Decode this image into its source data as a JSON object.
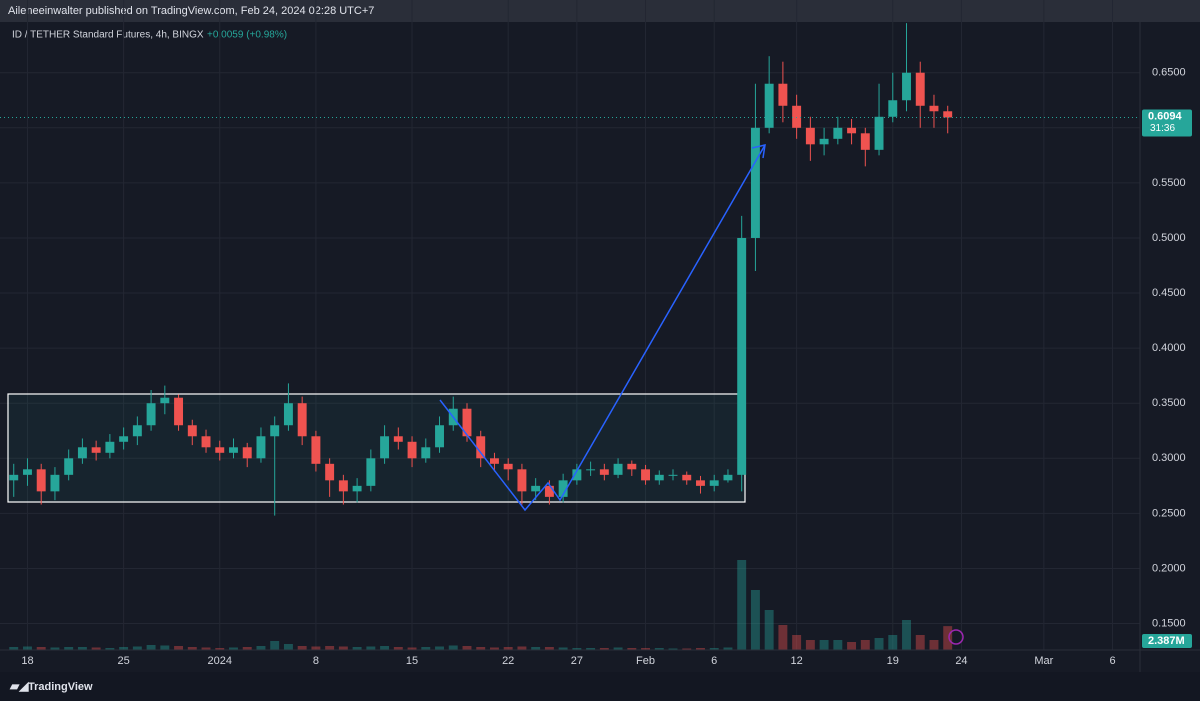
{
  "header": {
    "publisher": "Aileneeinwalter published on TradingView.com, Feb 24, 2024 02:28 UTC+7"
  },
  "footer": {
    "brand": "TradingView"
  },
  "chart_data": {
    "type": "candlestick",
    "title": "ID / TETHER Standard Futures, 4h, BINGX",
    "change": "+0.0059 (+0.98%)",
    "up_color": "#26a69a",
    "down_color": "#ef5350",
    "x": [
      "2023-12-17",
      "2023-12-18",
      "2023-12-19",
      "2023-12-20",
      "2023-12-21",
      "2023-12-22",
      "2023-12-23",
      "2023-12-24",
      "2023-12-25",
      "2023-12-26",
      "2023-12-27",
      "2023-12-28",
      "2023-12-29",
      "2023-12-30",
      "2023-12-31",
      "2024-01-01",
      "2024-01-02",
      "2024-01-03",
      "2024-01-04",
      "2024-01-05",
      "2024-01-06",
      "2024-01-07",
      "2024-01-08",
      "2024-01-09",
      "2024-01-10",
      "2024-01-11",
      "2024-01-12",
      "2024-01-13",
      "2024-01-14",
      "2024-01-15",
      "2024-01-16",
      "2024-01-17",
      "2024-01-18",
      "2024-01-19",
      "2024-01-20",
      "2024-01-21",
      "2024-01-22",
      "2024-01-23",
      "2024-01-24",
      "2024-01-25",
      "2024-01-26",
      "2024-01-27",
      "2024-01-28",
      "2024-01-29",
      "2024-01-30",
      "2024-01-31",
      "2024-02-01",
      "2024-02-02",
      "2024-02-03",
      "2024-02-04",
      "2024-02-05",
      "2024-02-06",
      "2024-02-07",
      "2024-02-08",
      "2024-02-09",
      "2024-02-10",
      "2024-02-11",
      "2024-02-12",
      "2024-02-13",
      "2024-02-14",
      "2024-02-15",
      "2024-02-16",
      "2024-02-17",
      "2024-02-18",
      "2024-02-19",
      "2024-02-20",
      "2024-02-21",
      "2024-02-22",
      "2024-02-23"
    ],
    "open": [
      0.28,
      0.285,
      0.29,
      0.27,
      0.285,
      0.3,
      0.31,
      0.305,
      0.315,
      0.32,
      0.33,
      0.35,
      0.355,
      0.33,
      0.32,
      0.31,
      0.305,
      0.31,
      0.3,
      0.32,
      0.33,
      0.35,
      0.32,
      0.295,
      0.28,
      0.27,
      0.275,
      0.3,
      0.32,
      0.315,
      0.3,
      0.31,
      0.33,
      0.345,
      0.32,
      0.3,
      0.295,
      0.29,
      0.27,
      0.275,
      0.265,
      0.28,
      0.29,
      0.29,
      0.285,
      0.295,
      0.29,
      0.28,
      0.285,
      0.285,
      0.28,
      0.275,
      0.28,
      0.285,
      0.5,
      0.6,
      0.64,
      0.62,
      0.6,
      0.585,
      0.59,
      0.6,
      0.595,
      0.58,
      0.61,
      0.625,
      0.65,
      0.62,
      0.615
    ],
    "high": [
      0.295,
      0.3,
      0.295,
      0.292,
      0.308,
      0.318,
      0.316,
      0.322,
      0.328,
      0.338,
      0.362,
      0.366,
      0.358,
      0.335,
      0.326,
      0.316,
      0.318,
      0.314,
      0.328,
      0.338,
      0.368,
      0.356,
      0.325,
      0.3,
      0.285,
      0.282,
      0.308,
      0.33,
      0.328,
      0.32,
      0.318,
      0.338,
      0.356,
      0.35,
      0.325,
      0.305,
      0.3,
      0.295,
      0.282,
      0.28,
      0.286,
      0.295,
      0.297,
      0.295,
      0.3,
      0.298,
      0.294,
      0.289,
      0.29,
      0.288,
      0.284,
      0.285,
      0.29,
      0.52,
      0.64,
      0.665,
      0.66,
      0.63,
      0.61,
      0.6,
      0.61,
      0.608,
      0.6,
      0.64,
      0.65,
      0.695,
      0.66,
      0.63,
      0.62
    ],
    "low": [
      0.265,
      0.275,
      0.258,
      0.262,
      0.28,
      0.295,
      0.298,
      0.3,
      0.308,
      0.312,
      0.325,
      0.34,
      0.325,
      0.312,
      0.305,
      0.298,
      0.3,
      0.292,
      0.296,
      0.248,
      0.325,
      0.312,
      0.288,
      0.265,
      0.258,
      0.26,
      0.27,
      0.295,
      0.308,
      0.292,
      0.296,
      0.305,
      0.325,
      0.315,
      0.292,
      0.288,
      0.28,
      0.258,
      0.262,
      0.258,
      0.26,
      0.276,
      0.284,
      0.28,
      0.282,
      0.284,
      0.276,
      0.276,
      0.28,
      0.276,
      0.268,
      0.27,
      0.278,
      0.27,
      0.47,
      0.595,
      0.605,
      0.59,
      0.57,
      0.575,
      0.585,
      0.585,
      0.565,
      0.575,
      0.605,
      0.615,
      0.6,
      0.6,
      0.595
    ],
    "close": [
      0.285,
      0.29,
      0.27,
      0.285,
      0.3,
      0.31,
      0.305,
      0.315,
      0.32,
      0.33,
      0.35,
      0.355,
      0.33,
      0.32,
      0.31,
      0.305,
      0.31,
      0.3,
      0.32,
      0.33,
      0.35,
      0.32,
      0.295,
      0.28,
      0.27,
      0.275,
      0.3,
      0.32,
      0.315,
      0.3,
      0.31,
      0.33,
      0.345,
      0.32,
      0.3,
      0.295,
      0.29,
      0.27,
      0.275,
      0.265,
      0.28,
      0.29,
      0.29,
      0.285,
      0.295,
      0.29,
      0.28,
      0.285,
      0.285,
      0.28,
      0.275,
      0.28,
      0.285,
      0.5,
      0.6,
      0.64,
      0.62,
      0.6,
      0.585,
      0.59,
      0.6,
      0.595,
      0.58,
      0.61,
      0.625,
      0.65,
      0.62,
      0.615,
      0.6094
    ],
    "volume": [
      0.3,
      0.35,
      0.3,
      0.25,
      0.3,
      0.3,
      0.25,
      0.2,
      0.3,
      0.35,
      0.5,
      0.45,
      0.4,
      0.3,
      0.25,
      0.2,
      0.25,
      0.3,
      0.4,
      0.9,
      0.6,
      0.4,
      0.35,
      0.4,
      0.35,
      0.3,
      0.35,
      0.4,
      0.3,
      0.25,
      0.3,
      0.35,
      0.45,
      0.4,
      0.3,
      0.25,
      0.3,
      0.35,
      0.3,
      0.3,
      0.25,
      0.2,
      0.2,
      0.2,
      0.25,
      0.2,
      0.2,
      0.2,
      0.15,
      0.15,
      0.2,
      0.2,
      0.25,
      9,
      6,
      4,
      2.5,
      1.5,
      1,
      1,
      1,
      0.8,
      1,
      1.2,
      1.5,
      3,
      1.5,
      1,
      2.387
    ],
    "xlim": [
      "2023-12-16",
      "2024-03-08"
    ],
    "xticks": [
      {
        "value": "2023-12-18",
        "label": "18"
      },
      {
        "value": "2023-12-25",
        "label": "25"
      },
      {
        "value": "2024-01-01",
        "label": "2024"
      },
      {
        "value": "2024-01-08",
        "label": "8"
      },
      {
        "value": "2024-01-15",
        "label": "15"
      },
      {
        "value": "2024-01-22",
        "label": "22"
      },
      {
        "value": "2024-01-27",
        "label": "27"
      },
      {
        "value": "2024-02-01",
        "label": "Feb"
      },
      {
        "value": "2024-02-06",
        "label": "6"
      },
      {
        "value": "2024-02-12",
        "label": "12"
      },
      {
        "value": "2024-02-19",
        "label": "19"
      },
      {
        "value": "2024-02-24",
        "label": "24"
      },
      {
        "value": "2024-03-01",
        "label": "Mar"
      },
      {
        "value": "2024-03-06",
        "label": "6"
      }
    ],
    "ylim": [
      0.126,
      0.716
    ],
    "yticks": [
      {
        "value": 0.15,
        "label": "0.1500"
      },
      {
        "value": 0.2,
        "label": "0.2000"
      },
      {
        "value": 0.25,
        "label": "0.2500"
      },
      {
        "value": 0.3,
        "label": "0.3000"
      },
      {
        "value": 0.35,
        "label": "0.3500"
      },
      {
        "value": 0.4,
        "label": "0.4000"
      },
      {
        "value": 0.45,
        "label": "0.4500"
      },
      {
        "value": 0.5,
        "label": "0.5000"
      },
      {
        "value": 0.55,
        "label": "0.5500"
      },
      {
        "value": 0.6,
        "label": "0.6000"
      },
      {
        "value": 0.65,
        "label": "0.6500"
      }
    ],
    "volume_ylim": [
      0,
      9.5
    ],
    "last_price": {
      "value": 0.6094,
      "label": "0.6094"
    },
    "countdown": "31:36",
    "last_volume": {
      "value": 2.387,
      "label": "2.387M"
    },
    "grid": true
  }
}
